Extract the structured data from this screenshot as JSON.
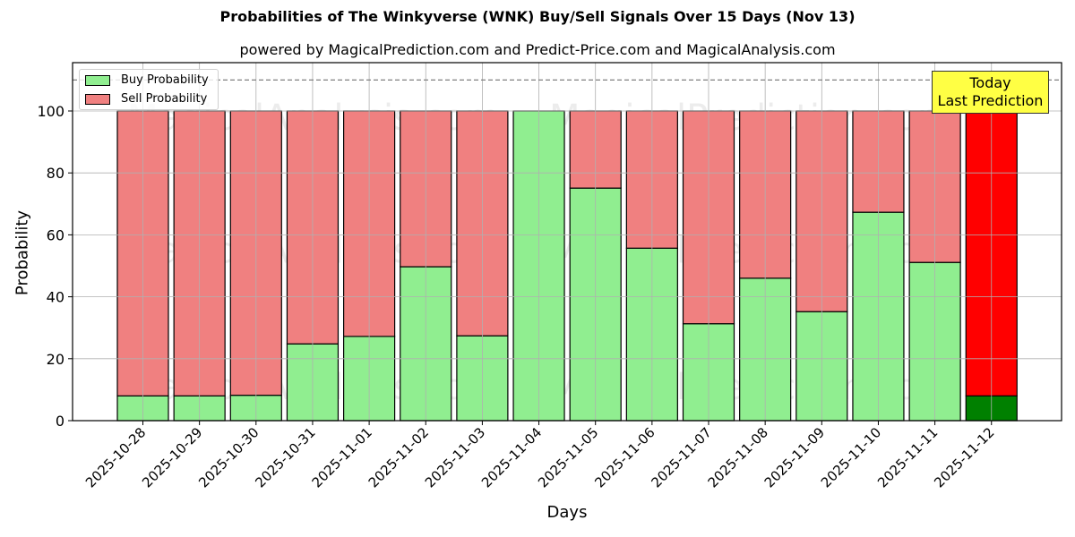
{
  "chart_data": {
    "type": "bar",
    "stacked": true,
    "title": "Probabilities of The Winkyverse (WNK) Buy/Sell Signals Over 15 Days (Nov 13)",
    "subtitle": "powered by MagicalPrediction.com and Predict-Price.com and MagicalAnalysis.com",
    "xlabel": "Days",
    "ylabel": "Probability",
    "ylim": [
      0,
      115
    ],
    "yticks": [
      0,
      20,
      40,
      60,
      80,
      100
    ],
    "grid": true,
    "legend_position": "upper left",
    "reference_line": {
      "y": 110,
      "style": "dashed",
      "color": "#808080"
    },
    "categories": [
      "2025-10-28",
      "2025-10-29",
      "2025-10-30",
      "2025-10-31",
      "2025-11-01",
      "2025-11-02",
      "2025-11-03",
      "2025-11-04",
      "2025-11-05",
      "2025-11-06",
      "2025-11-07",
      "2025-11-08",
      "2025-11-09",
      "2025-11-10",
      "2025-11-11",
      "2025-11-12"
    ],
    "series": [
      {
        "name": "Buy Probability",
        "color": "#90ee90",
        "values": [
          8.0,
          8.0,
          8.2,
          24.8,
          27.2,
          49.7,
          27.4,
          100.0,
          75.1,
          55.7,
          31.3,
          46.0,
          35.2,
          67.3,
          51.1,
          8.0
        ]
      },
      {
        "name": "Sell Probability",
        "color": "#f08080",
        "values": [
          92.0,
          92.0,
          91.8,
          75.2,
          72.8,
          50.3,
          72.6,
          0.0,
          24.9,
          44.3,
          68.7,
          54.0,
          64.8,
          32.7,
          48.9,
          92.0
        ]
      }
    ],
    "highlight": {
      "index": 15,
      "buy_color": "#008000",
      "sell_color": "#ff0000"
    },
    "annotation": {
      "line1": "Today",
      "line2": "Last Prediction",
      "background": "#ffff44"
    },
    "watermarks": [
      "MagicalAnalysis.com",
      "MagicalPrediction.com"
    ]
  }
}
